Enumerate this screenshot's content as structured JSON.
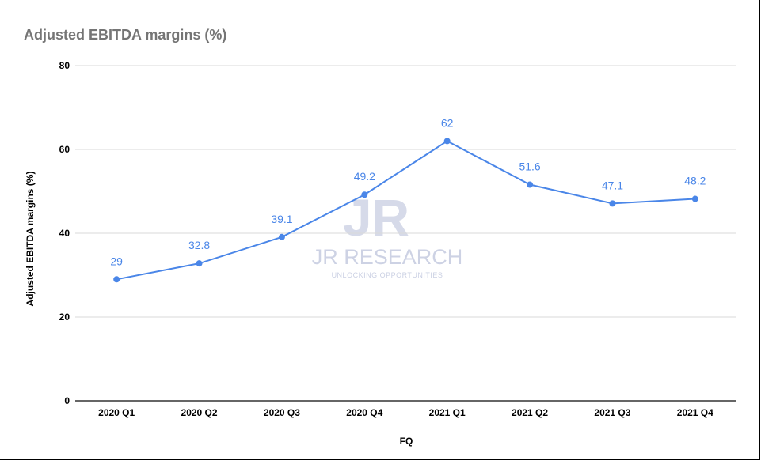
{
  "chart_data": {
    "type": "line",
    "title": "Adjusted EBITDA margins (%)",
    "xlabel": "FQ",
    "ylabel": "Adjusted EBITDA margins (%)",
    "categories": [
      "2020 Q1",
      "2020 Q2",
      "2020 Q3",
      "2020 Q4",
      "2021 Q1",
      "2021 Q2",
      "2021 Q3",
      "2021 Q4"
    ],
    "series": [
      {
        "values": [
          29,
          32.8,
          39.1,
          49.2,
          62,
          51.6,
          47.1,
          48.2
        ]
      }
    ],
    "ylim": [
      0,
      80
    ],
    "yticks": [
      0,
      20,
      40,
      60,
      80
    ],
    "grid": true,
    "data_labels": true,
    "line_color": "#4a86e8"
  },
  "watermark": {
    "logo_letters": "JR",
    "name": "JR RESEARCH",
    "tagline": "UNLOCKING OPPORTUNITIES"
  }
}
